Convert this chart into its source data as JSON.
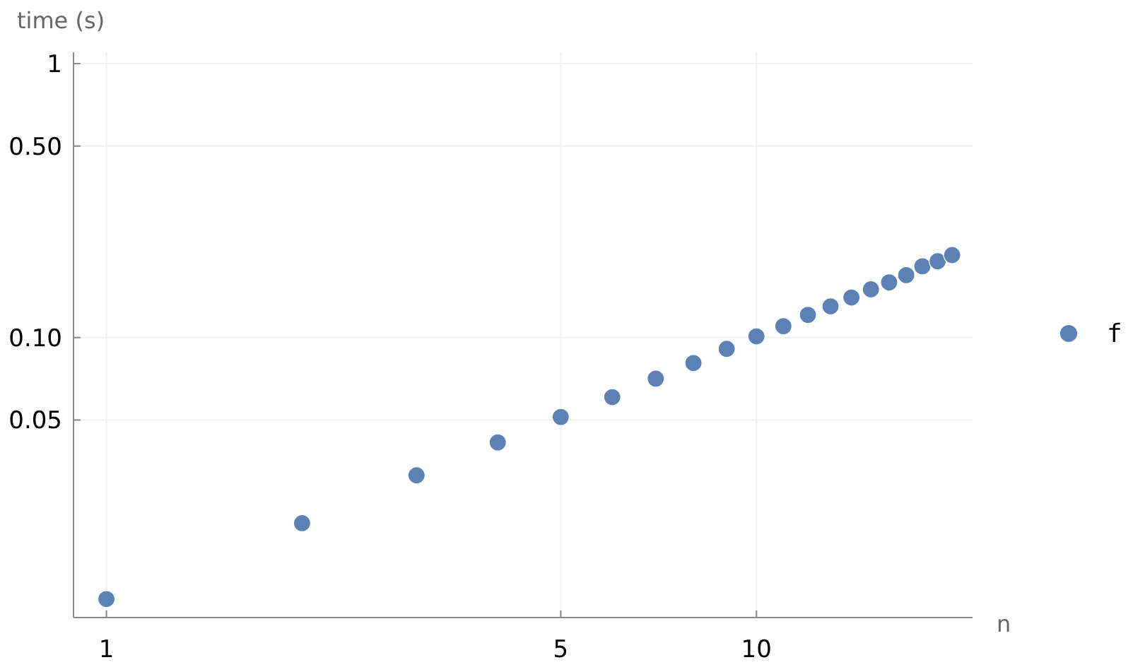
{
  "chart_data": {
    "type": "scatter",
    "xlabel": "n",
    "ylabel": "time (s)",
    "log": "xy",
    "grid": true,
    "legend": "right",
    "marker": "circle",
    "x": [
      1,
      2,
      3,
      4,
      5,
      6,
      7,
      8,
      9,
      10,
      11,
      12,
      13,
      14,
      15,
      16,
      17,
      18,
      19,
      20
    ],
    "series": [
      {
        "name": "f",
        "color": "#5e81b5",
        "values": [
          0.0111,
          0.021,
          0.0314,
          0.0414,
          0.0513,
          0.0606,
          0.0708,
          0.0807,
          0.0909,
          0.101,
          0.11,
          0.121,
          0.13,
          0.14,
          0.15,
          0.159,
          0.169,
          0.182,
          0.19,
          0.2
        ]
      }
    ],
    "xlim": [
      0.89,
      21.5
    ],
    "ylim": [
      0.0095,
      1.1
    ],
    "xticks": [
      1,
      5,
      10
    ],
    "yticks": [
      1,
      {
        "value": 0.5,
        "label": "0.50"
      },
      {
        "value": 0.1,
        "label": "0.10"
      },
      0.05
    ]
  }
}
